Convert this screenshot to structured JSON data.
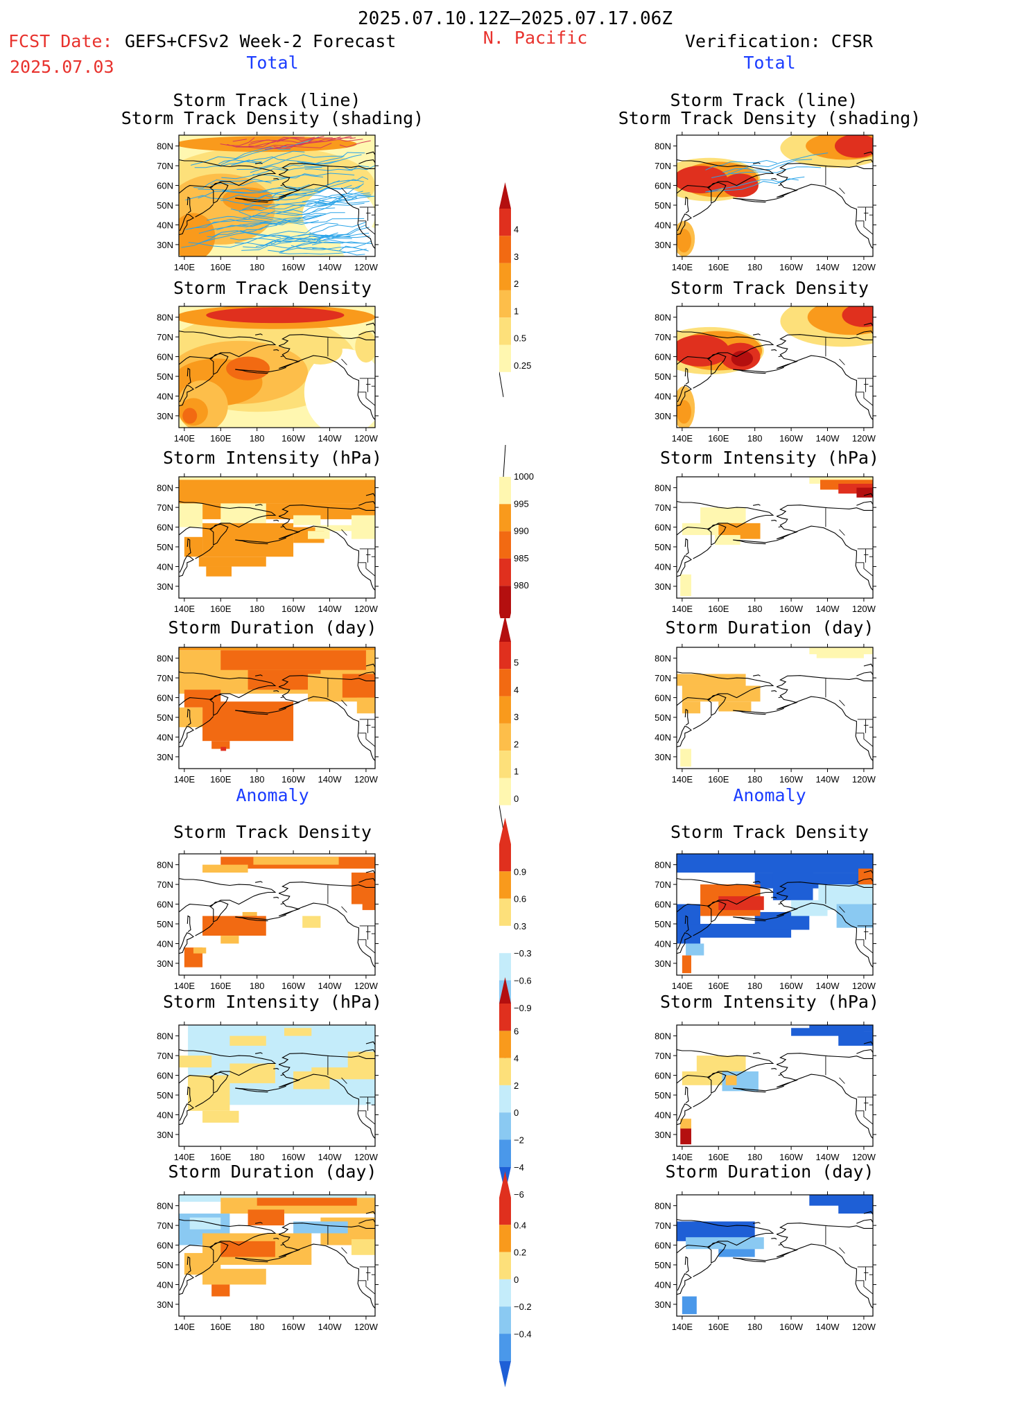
{
  "header": {
    "date_range": "2025.07.10.12Z–2025.07.17.06Z",
    "fcst_label": "FCST Date:",
    "fcst_model": "GEFS+CFSv2 Week-2 Forecast",
    "fcst_date": "2025.07.03",
    "region": "N. Pacific",
    "verification": "Verification: CFSR"
  },
  "sections": {
    "total": "Total",
    "anomaly": "Anomaly"
  },
  "panel_titles": {
    "track_line": "Storm Track (line)",
    "track_shading": "Storm Track Density (shading)",
    "track_density": "Storm Track Density",
    "intensity": "Storm Intensity (hPa)",
    "duration": "Storm Duration (day)"
  },
  "axes": {
    "lat_ticks": [
      "80N",
      "70N",
      "60N",
      "50N",
      "40N",
      "30N"
    ],
    "lon_ticks": [
      "140E",
      "160E",
      "180",
      "160W",
      "140W",
      "120W"
    ]
  },
  "colors": {
    "pale_yellow": "#fff7b0",
    "yellow": "#fde07a",
    "light_orange": "#fdbe4a",
    "orange": "#f99a1c",
    "dark_orange": "#f26a12",
    "red": "#e0301e",
    "dark_red": "#b40f0f",
    "light_blue": "#c4ecfa",
    "mid_blue": "#8ac9f2",
    "blue": "#4a98ea",
    "dark_blue": "#1e5fd6",
    "track_line": "#29a3e8",
    "track_red": "#d43a5a"
  },
  "colorbars": {
    "track_density_total": {
      "labels": [
        "4",
        "3",
        "2",
        "1",
        "0.5",
        "0.25"
      ]
    },
    "intensity_total": {
      "labels": [
        "1000",
        "995",
        "990",
        "985",
        "980"
      ]
    },
    "duration_total": {
      "labels": [
        "5",
        "4",
        "3",
        "2",
        "1",
        "0"
      ]
    },
    "track_density_anom": {
      "labels": [
        "0.9",
        "0.6",
        "0.3",
        "−0.3",
        "−0.6",
        "−0.9"
      ]
    },
    "intensity_anom": {
      "labels": [
        "6",
        "4",
        "2",
        "0",
        "−2",
        "−4",
        "−6"
      ]
    },
    "duration_anom": {
      "labels": [
        "0.4",
        "0.2",
        "0",
        "−0.2",
        "−0.4"
      ]
    }
  }
}
